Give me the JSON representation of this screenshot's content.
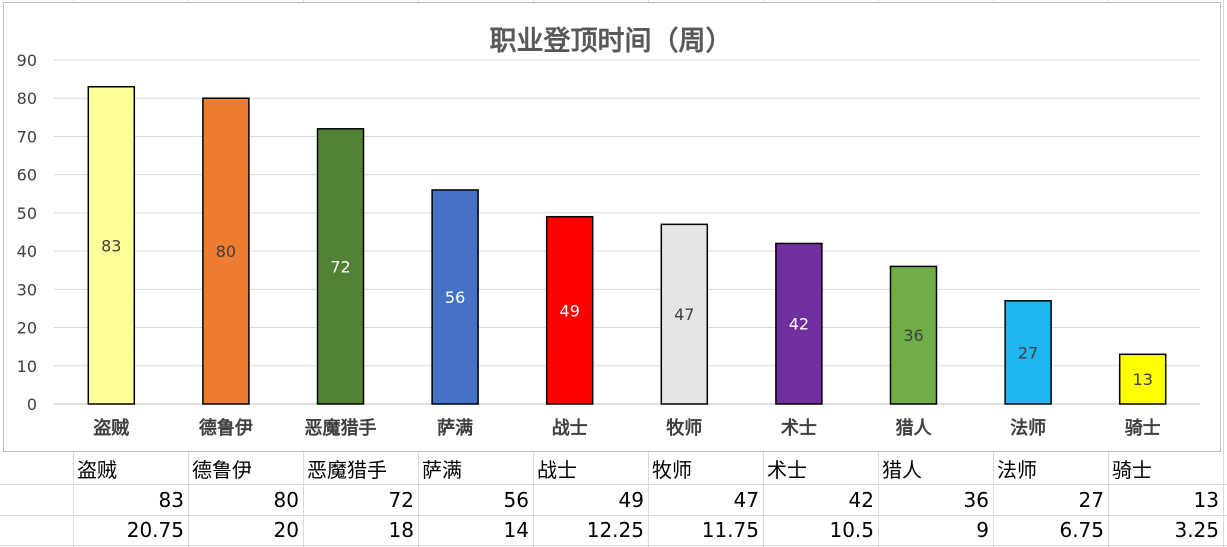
{
  "chart_data": {
    "type": "bar",
    "title": "职业登顶时间（周）",
    "categories": [
      "盗贼",
      "德鲁伊",
      "恶魔猎手",
      "萨满",
      "战士",
      "牧师",
      "术士",
      "猎人",
      "法师",
      "骑士"
    ],
    "values": [
      83,
      80,
      72,
      56,
      49,
      47,
      42,
      36,
      27,
      13
    ],
    "colors": [
      "#ffff99",
      "#ed7d31",
      "#548235",
      "#4472c4",
      "#ff0000",
      "#e7e6e6",
      "#7030a0",
      "#70ad47",
      "#1fb5f0",
      "#ffff00"
    ],
    "label_colors": [
      "#404040",
      "#404040",
      "#ffffff",
      "#ffffff",
      "#ffffff",
      "#404040",
      "#ffffff",
      "#404040",
      "#404040",
      "#404040"
    ],
    "yticks": [
      0,
      10,
      20,
      30,
      40,
      50,
      60,
      70,
      80,
      90
    ],
    "ylim": [
      0,
      90
    ],
    "grid": true,
    "legend": false,
    "xlabel": "",
    "ylabel": ""
  },
  "table": {
    "headers": [
      "盗贼",
      "德鲁伊",
      "恶魔猎手",
      "萨满",
      "战士",
      "牧师",
      "术士",
      "猎人",
      "法师",
      "骑士"
    ],
    "row1": [
      "83",
      "80",
      "72",
      "56",
      "49",
      "47",
      "42",
      "36",
      "27",
      "13"
    ],
    "row2": [
      "20.75",
      "20",
      "18",
      "14",
      "12.25",
      "11.75",
      "10.5",
      "9",
      "6.75",
      "3.25"
    ]
  }
}
